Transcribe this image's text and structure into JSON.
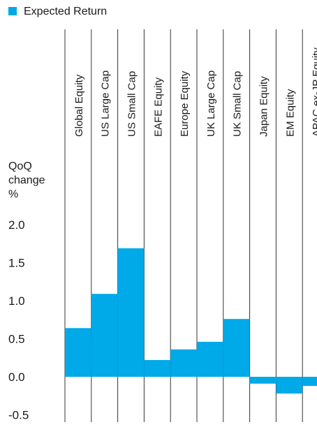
{
  "chart_data": {
    "type": "bar",
    "categories": [
      "Global Equity",
      "US Large Cap",
      "US Small Cap",
      "EAFE Equity",
      "Europe Equity",
      "UK Large Cap",
      "UK Small Cap",
      "Japan Equity",
      "EM Equity",
      "APAC ex-JP Equity"
    ],
    "series": [
      {
        "name": "Expected Return",
        "values": [
          0.64,
          1.09,
          1.69,
          0.22,
          0.36,
          0.46,
          0.76,
          -0.09,
          -0.22,
          -0.12
        ]
      }
    ],
    "title": "",
    "ylabel": "QoQ change %",
    "ylabel_lines": [
      "QoQ",
      "change",
      "%"
    ],
    "ylim": [
      -0.5,
      2.0
    ],
    "yticks": [
      "2.0",
      "1.5",
      "1.0",
      "0.5",
      "0.0",
      "-0.5"
    ],
    "bar_color": "#00a9e8",
    "grid": "vertical separators",
    "legend": "top-left"
  }
}
